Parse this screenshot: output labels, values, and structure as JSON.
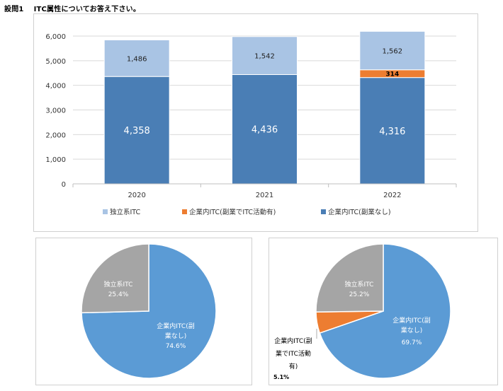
{
  "page": {
    "question_number": "設問1",
    "question_text": "ITC属性についてお答え下さい。"
  },
  "colors": {
    "independent": "#a9c4e4",
    "side_job": "#ed7d31",
    "no_side_job": "#4a7eb5",
    "pie_blue": "#5b9bd5",
    "pie_gray": "#a5a5a5",
    "pie_orange": "#ed7d31"
  },
  "chart_data": [
    {
      "type": "bar",
      "stacked": true,
      "categories": [
        "2020",
        "2021",
        "2022"
      ],
      "ylim": [
        0,
        6000
      ],
      "yticks": [
        "0",
        "1,000",
        "2,000",
        "3,000",
        "4,000",
        "5,000",
        "6,000"
      ],
      "series": [
        {
          "name": "企業内ITC(副業なし)",
          "values": [
            4358,
            4436,
            4316
          ],
          "labels": [
            "4,358",
            "4,436",
            "4,316"
          ],
          "color": "#4a7eb5"
        },
        {
          "name": "企業内ITC(副業でITC活動有)",
          "values": [
            0,
            0,
            314
          ],
          "labels": [
            "",
            "",
            "314"
          ],
          "color": "#ed7d31"
        },
        {
          "name": "独立系ITC",
          "values": [
            1486,
            1542,
            1562
          ],
          "labels": [
            "1,486",
            "1,542",
            "1,562"
          ],
          "color": "#a9c4e4"
        }
      ],
      "legend": [
        "独立系ITC",
        "企業内ITC(副業でITC活動有)",
        "企業内ITC(副業なし)"
      ],
      "legend_position": "bottom",
      "grid": true
    },
    {
      "type": "pie",
      "slices": [
        {
          "label": "独立系ITC",
          "value": 25.4,
          "pct": "25.4%",
          "color": "#a5a5a5"
        },
        {
          "label": "企業内ITC(副業なし)",
          "value": 74.6,
          "pct": "74.6%",
          "color": "#5b9bd5"
        }
      ]
    },
    {
      "type": "pie",
      "slices": [
        {
          "label": "独立系ITC",
          "value": 25.2,
          "pct": "25.2%",
          "color": "#a5a5a5"
        },
        {
          "label": "企業内ITC(副業でITC活動有)",
          "value": 5.1,
          "pct": "5.1%",
          "color": "#ed7d31"
        },
        {
          "label": "企業内ITC(副業なし)",
          "value": 69.7,
          "pct": "69.7%",
          "color": "#5b9bd5"
        }
      ]
    }
  ],
  "pie_labels": {
    "left": {
      "independent": {
        "line1": "独立系ITC",
        "pct": "25.4%"
      },
      "no_side": {
        "line1": "企業内ITC(副",
        "line2": "業なし)",
        "pct": "74.6%"
      }
    },
    "right": {
      "independent": {
        "line1": "独立系ITC",
        "pct": "25.2%"
      },
      "no_side": {
        "line1": "企業内ITC(副",
        "line2": "業なし)",
        "pct": "69.7%"
      },
      "side_job": {
        "line1": "企業内ITC(副",
        "line2": "業でITC活動",
        "line3": "有)",
        "pct": "5.1%"
      }
    }
  }
}
